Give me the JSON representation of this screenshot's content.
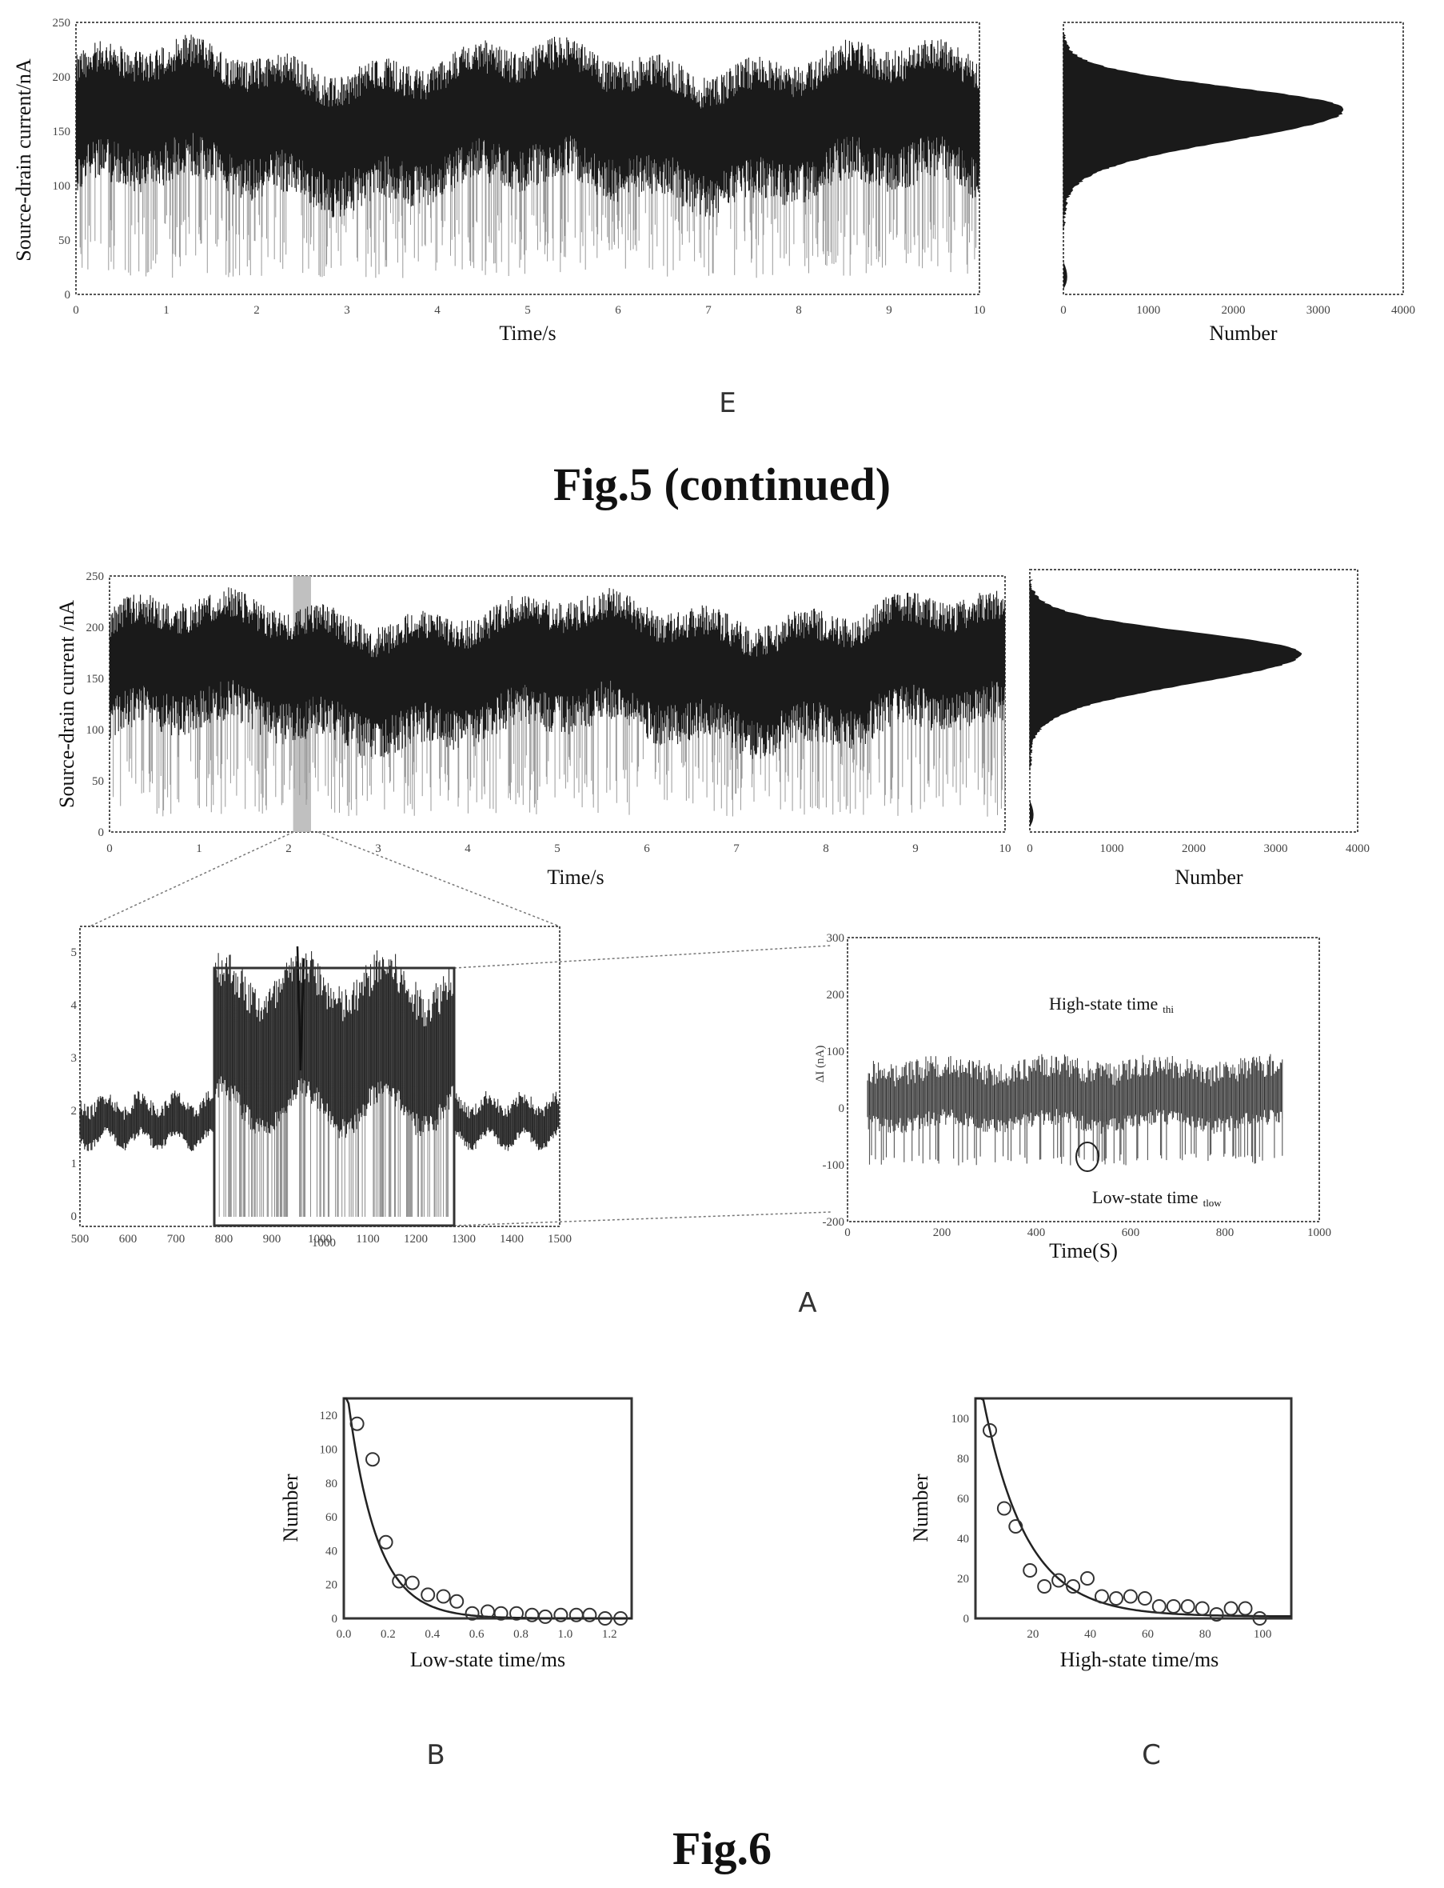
{
  "panel_labels": {
    "fig5_e": "E",
    "fig6_a": "A",
    "fig6_b": "B",
    "fig6_c": "C"
  },
  "figure_titles": {
    "fig5": "Fig.5 (continued)",
    "fig6": "Fig.6"
  },
  "chart_data": [
    {
      "id": "fig5e_trace",
      "type": "line",
      "xlabel": "Time/s",
      "ylabel": "Source-drain current/nA",
      "xlim": [
        0,
        10
      ],
      "ylim": [
        0,
        250
      ],
      "x_ticks": [
        "0",
        "1",
        "2",
        "3",
        "4",
        "5",
        "6",
        "7",
        "8",
        "9",
        "10"
      ],
      "y_ticks": [
        "0",
        "50",
        "100",
        "150",
        "200",
        "250"
      ],
      "baseline_high_state": 170,
      "low_state_min": 15,
      "n_points": 1400,
      "color": "#1a1a1a"
    },
    {
      "id": "fig5e_hist",
      "type": "area",
      "xlabel": "Number",
      "xlim": [
        0,
        4000
      ],
      "x_ticks": [
        "0",
        "1000",
        "2000",
        "3000",
        "4000"
      ],
      "peak_current": 170,
      "peak_count": 3300,
      "low_peak_current": 15,
      "low_peak_count": 60,
      "color": "#1a1a1a"
    },
    {
      "id": "fig6a_trace",
      "type": "line",
      "xlabel": "Time/s",
      "ylabel": "Source-drain current /nA",
      "xlim": [
        0,
        10
      ],
      "ylim": [
        0,
        250
      ],
      "x_ticks": [
        "0",
        "1",
        "2",
        "3",
        "4",
        "5",
        "6",
        "7",
        "8",
        "9",
        "10"
      ],
      "y_ticks": [
        "0",
        "50",
        "100",
        "150",
        "200",
        "250"
      ],
      "highlight_x": [
        2.05,
        2.25
      ],
      "color": "#1a1a1a"
    },
    {
      "id": "fig6a_hist",
      "type": "area",
      "xlabel": "Number",
      "xlim": [
        0,
        4000
      ],
      "x_ticks": [
        "0",
        "1000",
        "2000",
        "3000",
        "4000"
      ],
      "peak_current": 170,
      "peak_count": 3300,
      "color": "#1a1a1a"
    },
    {
      "id": "fig6a_zoom",
      "type": "line",
      "x_ticks": [
        "500",
        "600",
        "700",
        "800",
        "900",
        "1000",
        "1100",
        "1200",
        "1300",
        "1400",
        "1500"
      ],
      "y_ticks": [
        "0",
        "1",
        "2",
        "3",
        "4",
        "5"
      ],
      "inner_box_label": "1000",
      "color": "#2a2a2a"
    },
    {
      "id": "fig6a_detail",
      "type": "line",
      "xlabel": "Time(S)",
      "ylabel": "ΔI (nA)",
      "x_ticks": [
        "0",
        "200",
        "400",
        "600",
        "800",
        "1000"
      ],
      "y_ticks": [
        "-200",
        "-100",
        "0",
        "100",
        "200",
        "300"
      ],
      "annotations": [
        {
          "text": "High-state time",
          "sub": "thi"
        },
        {
          "text": "Low-state time",
          "sub": "tlow"
        }
      ],
      "color": "#333333"
    },
    {
      "id": "fig6b",
      "type": "scatter",
      "xlabel": "Low-state time/ms",
      "ylabel": "Number",
      "xlim": [
        0,
        1.3
      ],
      "ylim": [
        0,
        130
      ],
      "x_ticks": [
        0.0,
        0.2,
        0.4,
        0.6,
        0.8,
        1.0,
        1.2
      ],
      "x_tick_labels": [
        "0.0",
        "0.2",
        "0.4",
        "0.6",
        "0.8",
        "1.0",
        "1.2"
      ],
      "y_ticks": [
        0,
        20,
        40,
        60,
        80,
        100,
        120
      ],
      "y_tick_labels": [
        "0",
        "20",
        "40",
        "60",
        "80",
        "100",
        "120"
      ],
      "points": [
        [
          0.06,
          115
        ],
        [
          0.13,
          94
        ],
        [
          0.19,
          45
        ],
        [
          0.25,
          22
        ],
        [
          0.31,
          21
        ],
        [
          0.38,
          14
        ],
        [
          0.45,
          13
        ],
        [
          0.51,
          10
        ],
        [
          0.58,
          3
        ],
        [
          0.65,
          4
        ],
        [
          0.71,
          3
        ],
        [
          0.78,
          3
        ],
        [
          0.85,
          2
        ],
        [
          0.91,
          1
        ],
        [
          0.98,
          2
        ],
        [
          1.05,
          2
        ],
        [
          1.11,
          2
        ],
        [
          1.18,
          0
        ],
        [
          1.25,
          0
        ]
      ],
      "fit": {
        "A": 150,
        "tau": 0.13,
        "offset": 0
      }
    },
    {
      "id": "fig6c",
      "type": "scatter",
      "xlabel": "High-state time/ms",
      "ylabel": "Number",
      "xlim": [
        0,
        110
      ],
      "ylim": [
        0,
        110
      ],
      "x_ticks": [
        20,
        40,
        60,
        80,
        100
      ],
      "x_tick_labels": [
        "20",
        "40",
        "60",
        "80",
        "100"
      ],
      "y_ticks": [
        0,
        20,
        40,
        60,
        80,
        100
      ],
      "y_tick_labels": [
        "0",
        "20",
        "40",
        "60",
        "80",
        "100"
      ],
      "points": [
        [
          5,
          94
        ],
        [
          10,
          55
        ],
        [
          14,
          46
        ],
        [
          19,
          24
        ],
        [
          24,
          16
        ],
        [
          29,
          19
        ],
        [
          34,
          16
        ],
        [
          39,
          20
        ],
        [
          44,
          11
        ],
        [
          49,
          10
        ],
        [
          54,
          11
        ],
        [
          59,
          10
        ],
        [
          64,
          6
        ],
        [
          69,
          6
        ],
        [
          74,
          6
        ],
        [
          79,
          5
        ],
        [
          84,
          2
        ],
        [
          89,
          5
        ],
        [
          94,
          5
        ],
        [
          99,
          0
        ]
      ],
      "fit": {
        "A": 130,
        "tau": 15,
        "offset": 1
      }
    }
  ]
}
